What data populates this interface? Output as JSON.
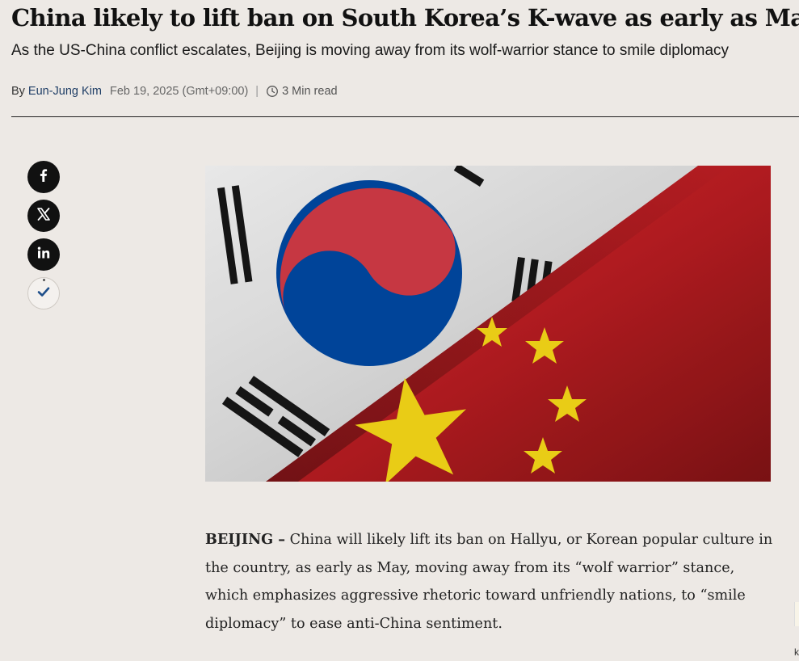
{
  "article": {
    "headline": "China likely to lift ban on South Korea’s K-wave as early as May",
    "subheadline": "As the US-China conflict escalates, Beijing is moving away from its wolf-warrior stance to smile diplomacy",
    "byline": {
      "prefix": "By",
      "author": "Eun-Jung Kim",
      "date": "Feb 19, 2025 (Gmt+09:00)",
      "separator": "|",
      "read_time": "3 Min read"
    },
    "share_icons": [
      "facebook-icon",
      "x-icon",
      "linkedin-icon",
      "bookmark-check-icon"
    ],
    "hero_image": {
      "subject": "south-korea-and-china-flags"
    },
    "body": {
      "dateline": "BEIJING –",
      "lead": " China will likely lift its ban on Hallyu, or Korean popular culture in the country, as early as May, moving away from its “wolf warrior” stance, which emphasizes aggressive rhetoric toward unfriendly nations, to “smile diplomacy” to ease anti-China sentiment."
    },
    "edge_fragment": "k"
  },
  "colors": {
    "background": "#ede9e5",
    "author_link": "#1f3e66",
    "china_red": "#c62026",
    "china_star": "#f3d517",
    "korea_red": "#cd2e3a",
    "korea_blue": "#0047a0"
  }
}
